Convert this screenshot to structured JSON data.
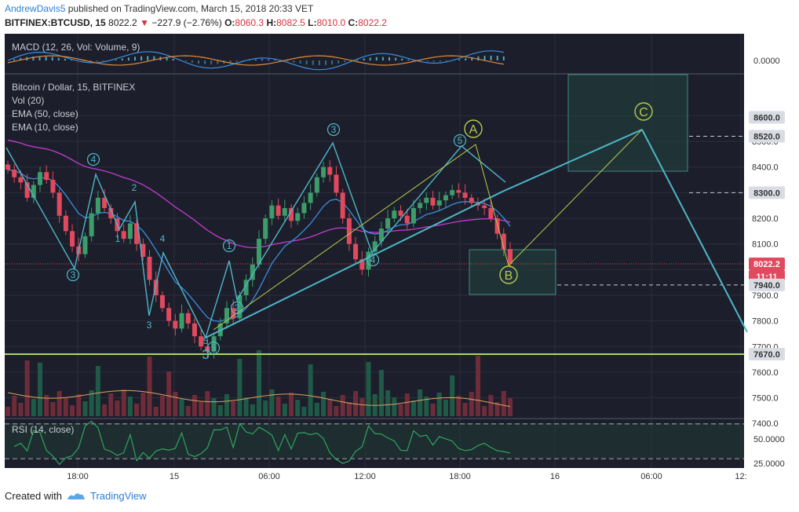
{
  "header": {
    "author": "AndrewDavis5",
    "published_text": "published on TradingView.com, March 15, 2018 20:33 VET",
    "symbol": "BITFINEX:BTCUSD, 15",
    "last": "8022.2",
    "change": "−227.9 (−2.76%)",
    "open_label": "O:",
    "open": "8060.3",
    "high_label": "H:",
    "high": "8082.5",
    "low_label": "L:",
    "low": "8010.0",
    "close_label": "C:",
    "close": "8022.2"
  },
  "footer": {
    "created_with": "Created with",
    "brand": "TradingView"
  },
  "colors": {
    "background": "#1c1f2b",
    "grid": "#2b2f3b",
    "up": "#3c9d6a",
    "down": "#e2495e",
    "ema50": "#c43bd0",
    "ema10": "#3b8de0",
    "wave": "#4db6c7",
    "abc": "#b7c94a",
    "support": "#a8d46a",
    "text": "#c8cbd4"
  },
  "chart_data": [
    {
      "type": "line",
      "title": "MACD (12, 26, Vol: Volume, 9)",
      "y_tick_labels": [
        "0.0000"
      ],
      "series": [
        {
          "name": "MACD"
        },
        {
          "name": "Signal"
        },
        {
          "name": "Histogram"
        }
      ]
    },
    {
      "type": "candlestick",
      "title": "Bitcoin / Dollar, 15, BITFINEX",
      "legend": [
        "Vol (20)",
        "EMA (50, close)",
        "EMA (10, close)"
      ],
      "x_tick_labels": [
        "18:00",
        "15",
        "06:00",
        "12:00",
        "18:00",
        "16",
        "06:00",
        "12:"
      ],
      "y_tick_labels": [
        "7400.0",
        "7500.0",
        "7600.0",
        "7700.0",
        "7800.0",
        "7900.0",
        "8000.0",
        "8100.0",
        "8200.0",
        "8300.0",
        "8400.0",
        "8500.0",
        "8600.0"
      ],
      "ylim": [
        7330,
        8690
      ],
      "price_labels": {
        "top_cut": "8600.0",
        "p8520": "8520.0",
        "p8300": "8300.0",
        "last": "8022.2",
        "countdown": "11:11",
        "p7940": "7940.0",
        "p7670": "7670.0"
      },
      "levels": [
        8520,
        8300,
        7940,
        7670
      ],
      "last_price": 8022.2,
      "closes": [
        8390,
        8360,
        8340,
        8280,
        8330,
        8380,
        8350,
        8300,
        8210,
        8150,
        8090,
        8060,
        8130,
        8220,
        8280,
        8240,
        8200,
        8150,
        8120,
        8180,
        8100,
        8050,
        7960,
        7900,
        7850,
        7800,
        7770,
        7830,
        7790,
        7740,
        7700,
        7680,
        7740,
        7790,
        7850,
        7810,
        7900,
        7960,
        8020,
        8120,
        8200,
        8250,
        8210,
        8240,
        8190,
        8220,
        8260,
        8300,
        8360,
        8400,
        8370,
        8300,
        8200,
        8100,
        8040,
        8000,
        8070,
        8110,
        8160,
        8200,
        8230,
        8210,
        8180,
        8240,
        8260,
        8280,
        8250,
        8270,
        8290,
        8310,
        8300,
        8280,
        8260,
        8250,
        8240,
        8200,
        8140,
        8080,
        8022
      ],
      "wave_labels": [
        "3",
        "4",
        "2",
        "1",
        "4",
        "3",
        "5",
        "5",
        "1",
        "2",
        "3",
        "4",
        "5",
        "3"
      ],
      "abc_labels": [
        "A",
        "B",
        "C"
      ]
    },
    {
      "type": "line",
      "title": "RSI (14, close)",
      "y_tick_labels": [
        "50.0000",
        "25.0000"
      ],
      "levels": [
        70,
        30
      ]
    }
  ]
}
